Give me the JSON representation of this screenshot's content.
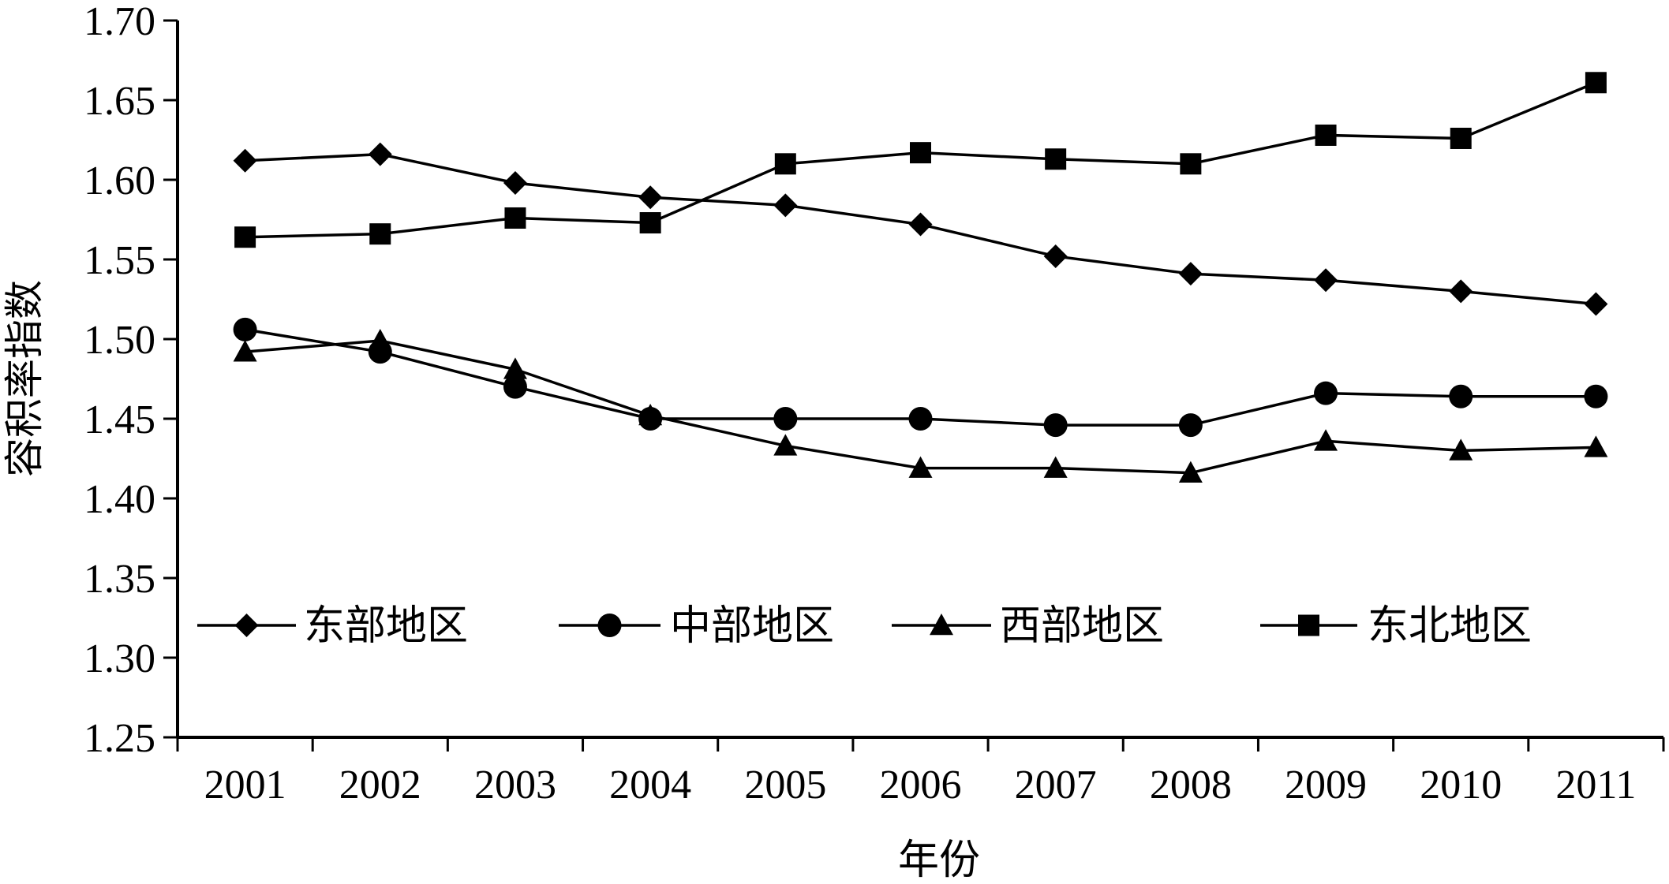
{
  "chart_data": {
    "type": "line",
    "title": "",
    "xlabel": "年份",
    "ylabel": "容积率指数",
    "categories": [
      "2001",
      "2002",
      "2003",
      "2004",
      "2005",
      "2006",
      "2007",
      "2008",
      "2009",
      "2010",
      "2011"
    ],
    "ylim": [
      1.25,
      1.7
    ],
    "yticks": [
      "1.25",
      "1.30",
      "1.35",
      "1.40",
      "1.45",
      "1.50",
      "1.55",
      "1.60",
      "1.65",
      "1.70"
    ],
    "grid": false,
    "legend_position": "lower-middle inside plot, single row",
    "series": [
      {
        "name": "东部地区",
        "marker": "diamond",
        "values": [
          1.612,
          1.616,
          1.598,
          1.589,
          1.584,
          1.572,
          1.552,
          1.541,
          1.537,
          1.53,
          1.522
        ]
      },
      {
        "name": "中部地区",
        "marker": "circle",
        "values": [
          1.506,
          1.492,
          1.47,
          1.45,
          1.45,
          1.45,
          1.446,
          1.446,
          1.466,
          1.464,
          1.464
        ]
      },
      {
        "name": "西部地区",
        "marker": "triangle",
        "values": [
          1.492,
          1.499,
          1.481,
          1.452,
          1.433,
          1.419,
          1.419,
          1.416,
          1.436,
          1.43,
          1.432
        ]
      },
      {
        "name": "东北地区",
        "marker": "square",
        "values": [
          1.564,
          1.566,
          1.576,
          1.573,
          1.61,
          1.617,
          1.613,
          1.61,
          1.628,
          1.626,
          1.661
        ]
      }
    ]
  }
}
